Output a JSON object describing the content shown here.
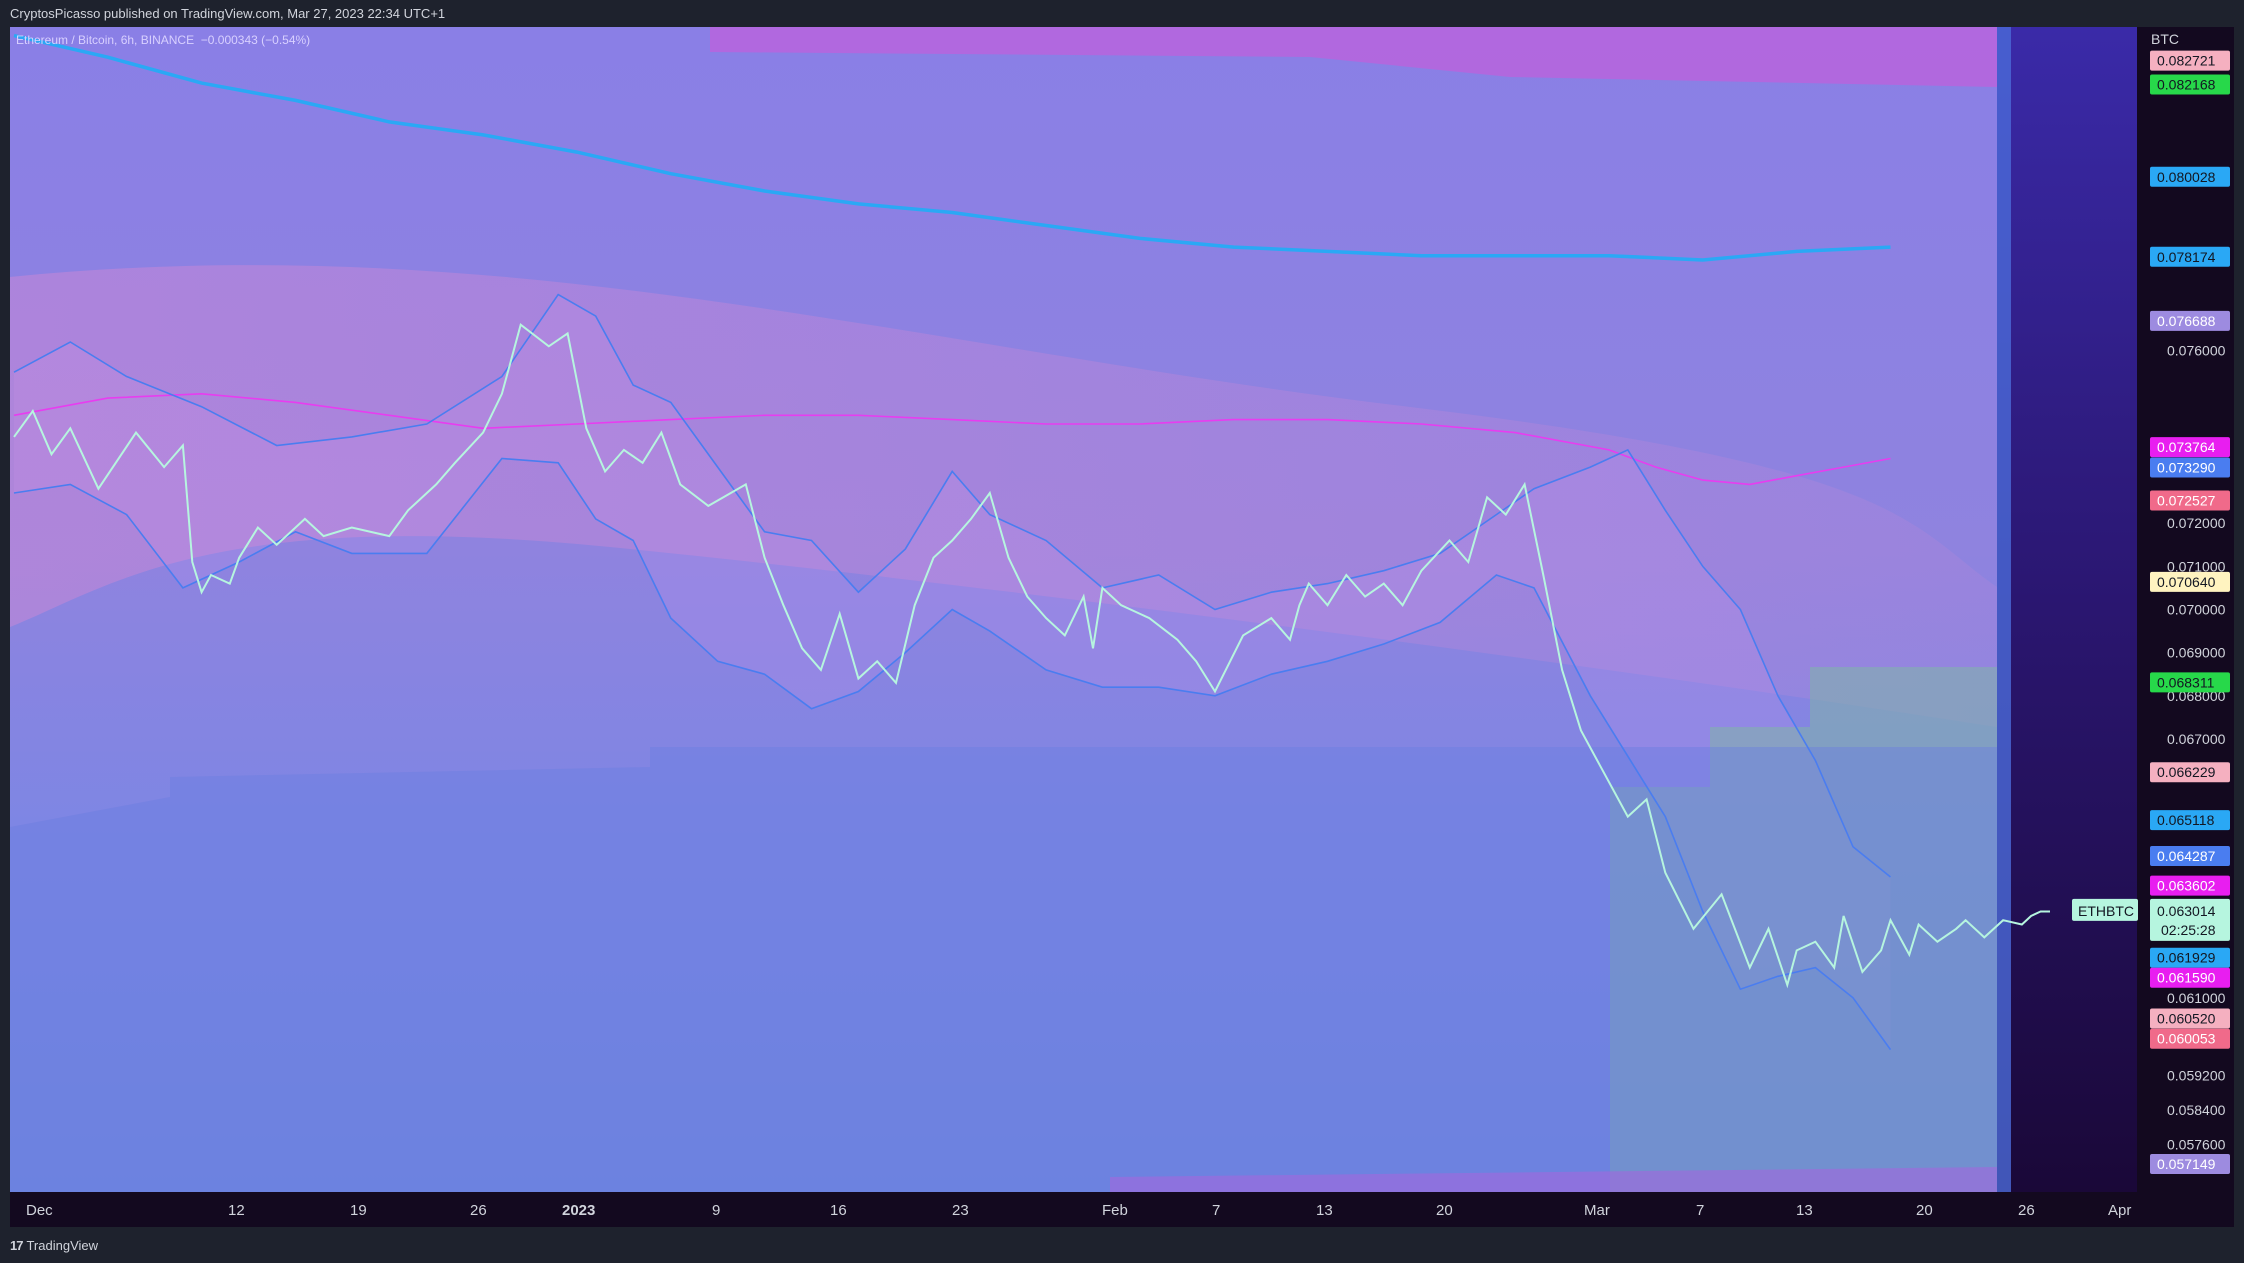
{
  "header": {
    "published": "CryptosPicasso published on TradingView.com, Mar 27, 2023 22:34 UTC+1"
  },
  "symbol": {
    "description": "Ethereum / Bitcoin, 6h, BINANCE",
    "change": "−0.000343 (−0.54%)"
  },
  "footer": {
    "brand": "TradingView"
  },
  "colors": {
    "background": "#13091f",
    "price_line": "#b6f5df",
    "upper_band": "#4a7df0",
    "pink_ma": "#e83cf0",
    "blue_ma": "#2aa8f5"
  },
  "chart_data": {
    "type": "line",
    "symbol": "ETHBTC",
    "currency": "BTC",
    "x_ticks": [
      "Dec",
      "12",
      "19",
      "26",
      "2023",
      "9",
      "16",
      "23",
      "Feb",
      "7",
      "13",
      "20",
      "Mar",
      "7",
      "13",
      "20",
      "26",
      "Apr"
    ],
    "y_ticks": [
      "0.076000",
      "0.072000",
      "0.071000",
      "0.070000",
      "0.069000",
      "0.068000",
      "0.067000",
      "0.061000",
      "0.059200",
      "0.058400",
      "0.057600"
    ],
    "ylim": [
      0.0565,
      0.0835
    ],
    "price_labels": [
      {
        "value": "0.082721",
        "bg": "#f5b0c0",
        "fg": "#131722"
      },
      {
        "value": "0.082168",
        "bg": "#27d84a",
        "fg": "#131722"
      },
      {
        "value": "0.080028",
        "bg": "#2aa8f5",
        "fg": "#131722"
      },
      {
        "value": "0.078174",
        "bg": "#2aa8f5",
        "fg": "#131722"
      },
      {
        "value": "0.076688",
        "bg": "#9d8be0",
        "fg": "#ffffff"
      },
      {
        "value": "0.073764",
        "bg": "#e81ef0",
        "fg": "#ffffff"
      },
      {
        "value": "0.073290",
        "bg": "#4a7df0",
        "fg": "#ffffff"
      },
      {
        "value": "0.072527",
        "bg": "#f06a8a",
        "fg": "#ffffff"
      },
      {
        "value": "0.070640",
        "bg": "#fff3c0",
        "fg": "#131722"
      },
      {
        "value": "0.068311",
        "bg": "#27d84a",
        "fg": "#131722"
      },
      {
        "value": "0.066229",
        "bg": "#f5b0c0",
        "fg": "#131722"
      },
      {
        "value": "0.065118",
        "bg": "#2aa8f5",
        "fg": "#131722"
      },
      {
        "value": "0.064287",
        "bg": "#4a7df0",
        "fg": "#ffffff"
      },
      {
        "value": "0.063602",
        "bg": "#e81ef0",
        "fg": "#ffffff"
      },
      {
        "value": "0.061929",
        "bg": "#2aa8f5",
        "fg": "#131722"
      },
      {
        "value": "0.061590",
        "bg": "#e81ef0",
        "fg": "#ffffff"
      },
      {
        "value": "0.060520",
        "bg": "#f5b0c0",
        "fg": "#131722"
      },
      {
        "value": "0.060053",
        "bg": "#f06a8a",
        "fg": "#ffffff"
      },
      {
        "value": "0.057149",
        "bg": "#9d8be0",
        "fg": "#ffffff"
      }
    ],
    "last": {
      "value": "0.063014",
      "countdown": "02:25:28",
      "bg": "#b6f5df",
      "fg": "#131722"
    },
    "price": {
      "x": [
        0,
        2,
        4,
        6,
        9,
        13,
        16,
        18,
        19,
        20,
        21,
        23,
        24,
        26,
        28,
        31,
        33,
        36,
        40,
        42,
        45,
        47,
        50,
        52,
        54,
        57,
        59,
        61,
        63,
        65,
        67,
        69,
        71,
        74,
        78,
        80,
        82,
        84,
        86,
        88,
        90,
        92,
        94,
        96,
        98,
        100,
        102,
        104,
        106,
        108,
        110,
        112,
        114,
        115,
        116,
        118,
        121,
        124,
        126,
        128,
        131,
        134,
        136,
        137,
        138,
        140,
        142,
        144,
        146,
        148,
        150,
        153,
        155,
        157,
        159,
        161,
        163,
        165,
        167,
        169,
        172,
        174,
        176,
        179,
        182,
        185,
        187,
        189,
        190,
        192,
        194,
        195,
        197,
        199,
        200,
        202,
        203,
        205,
        207,
        208,
        210,
        212,
        214,
        215,
        216,
        217
      ],
      "y": [
        0.074,
        0.0746,
        0.0736,
        0.0742,
        0.0728,
        0.0741,
        0.0733,
        0.0738,
        0.0711,
        0.0704,
        0.0708,
        0.0706,
        0.0712,
        0.0719,
        0.0715,
        0.0721,
        0.0717,
        0.0719,
        0.0717,
        0.0723,
        0.0729,
        0.0734,
        0.0741,
        0.075,
        0.0766,
        0.0761,
        0.0764,
        0.0742,
        0.0732,
        0.0737,
        0.0734,
        0.0741,
        0.0729,
        0.0724,
        0.0729,
        0.0712,
        0.0701,
        0.0691,
        0.0686,
        0.0699,
        0.0684,
        0.0688,
        0.0683,
        0.0701,
        0.0712,
        0.0716,
        0.0721,
        0.0727,
        0.0712,
        0.0703,
        0.0698,
        0.0694,
        0.0703,
        0.0691,
        0.0705,
        0.0701,
        0.0698,
        0.0693,
        0.0688,
        0.0681,
        0.0694,
        0.0698,
        0.0693,
        0.0701,
        0.0706,
        0.0701,
        0.0708,
        0.0703,
        0.0706,
        0.0701,
        0.0709,
        0.0716,
        0.0711,
        0.0726,
        0.0722,
        0.0729,
        0.0708,
        0.0686,
        0.0672,
        0.0664,
        0.0652,
        0.0656,
        0.0639,
        0.0626,
        0.0634,
        0.0617,
        0.0626,
        0.0613,
        0.0621,
        0.0623,
        0.0617,
        0.0629,
        0.0616,
        0.0621,
        0.0628,
        0.062,
        0.0627,
        0.0623,
        0.0626,
        0.0628,
        0.0624,
        0.0628,
        0.0627,
        0.0629,
        0.063,
        0.063
      ]
    },
    "upper_band": {
      "x": [
        0,
        6,
        12,
        20,
        28,
        36,
        44,
        52,
        58,
        62,
        66,
        70,
        75,
        80,
        85,
        90,
        95,
        100,
        104,
        110,
        116,
        122,
        128,
        134,
        140,
        146,
        152,
        158,
        162,
        168,
        172,
        176,
        180,
        184,
        188,
        192,
        196,
        200
      ],
      "y": [
        0.0755,
        0.0762,
        0.0754,
        0.0747,
        0.0738,
        0.074,
        0.0743,
        0.0754,
        0.0773,
        0.0768,
        0.0752,
        0.0748,
        0.0733,
        0.0718,
        0.0716,
        0.0704,
        0.0714,
        0.0732,
        0.0722,
        0.0716,
        0.0705,
        0.0708,
        0.07,
        0.0704,
        0.0706,
        0.0709,
        0.0713,
        0.0722,
        0.0728,
        0.0733,
        0.0737,
        0.0723,
        0.071,
        0.07,
        0.068,
        0.0665,
        0.0645,
        0.0638
      ]
    },
    "lower_band": {
      "x": [
        0,
        6,
        12,
        18,
        24,
        30,
        36,
        44,
        52,
        58,
        62,
        66,
        70,
        75,
        80,
        85,
        90,
        95,
        100,
        104,
        110,
        116,
        122,
        128,
        134,
        140,
        146,
        152,
        158,
        162,
        168,
        172,
        176,
        180,
        184,
        188,
        192,
        196,
        200
      ],
      "y": [
        0.0727,
        0.0729,
        0.0722,
        0.0705,
        0.0711,
        0.0718,
        0.0713,
        0.0713,
        0.0735,
        0.0734,
        0.0721,
        0.0716,
        0.0698,
        0.0688,
        0.0685,
        0.0677,
        0.0681,
        0.069,
        0.07,
        0.0695,
        0.0686,
        0.0682,
        0.0682,
        0.068,
        0.0685,
        0.0688,
        0.0692,
        0.0697,
        0.0708,
        0.0705,
        0.068,
        0.0666,
        0.0652,
        0.063,
        0.0612,
        0.0615,
        0.0617,
        0.061,
        0.0598
      ]
    },
    "pink_ma": {
      "x": [
        0,
        10,
        20,
        30,
        40,
        50,
        60,
        70,
        80,
        90,
        100,
        110,
        120,
        130,
        140,
        150,
        160,
        170,
        175,
        180,
        185,
        190,
        195,
        200
      ],
      "y": [
        0.0745,
        0.0749,
        0.075,
        0.0748,
        0.0745,
        0.0742,
        0.0743,
        0.0744,
        0.0745,
        0.0745,
        0.0744,
        0.0743,
        0.0743,
        0.0744,
        0.0744,
        0.0743,
        0.0741,
        0.0737,
        0.0733,
        0.073,
        0.0729,
        0.0731,
        0.0733,
        0.0735
      ]
    },
    "blue_ma": {
      "x": [
        0,
        10,
        20,
        30,
        40,
        50,
        60,
        70,
        80,
        90,
        100,
        110,
        120,
        130,
        140,
        150,
        160,
        170,
        180,
        190,
        200
      ],
      "y": [
        0.0833,
        0.0828,
        0.0822,
        0.0818,
        0.0813,
        0.081,
        0.0806,
        0.0801,
        0.0797,
        0.0794,
        0.0792,
        0.0789,
        0.0786,
        0.0784,
        0.0783,
        0.0782,
        0.0782,
        0.0782,
        0.0781,
        0.0783,
        0.0784
      ]
    }
  }
}
